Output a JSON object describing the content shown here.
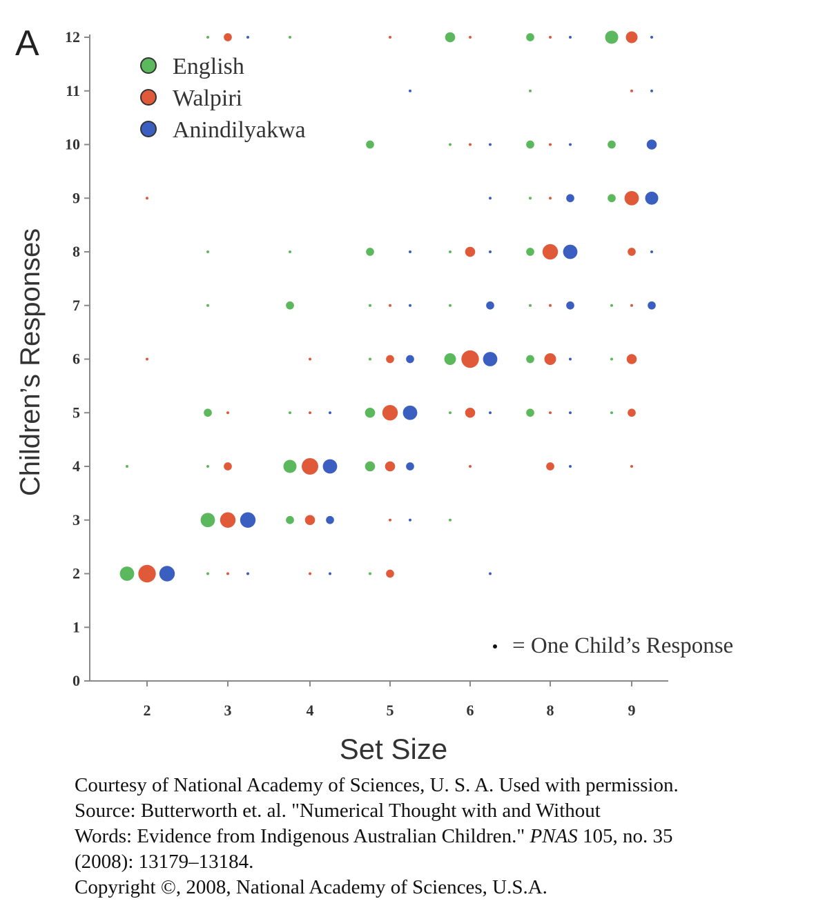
{
  "chart_data": {
    "type": "scatter",
    "panel_label": "A",
    "xlabel": "Set Size",
    "ylabel": "Children’s Responses",
    "x_categories": [
      "2",
      "3",
      "4",
      "5",
      "6",
      "8",
      "9"
    ],
    "y_ticks": [
      "0",
      "1",
      "2",
      "3",
      "4",
      "5",
      "6",
      "7",
      "8",
      "9",
      "10",
      "11",
      "12"
    ],
    "ylim": [
      0,
      12
    ],
    "legend_position": "top-left",
    "size_note": "= One Child’s Response",
    "series": [
      {
        "name": "English",
        "color": "#5cb85c",
        "points": [
          {
            "x": "2",
            "y": 2,
            "n": 6
          },
          {
            "x": "2",
            "y": 4,
            "n": 1
          },
          {
            "x": "3",
            "y": 3,
            "n": 6
          },
          {
            "x": "3",
            "y": 5,
            "n": 2
          },
          {
            "x": "3",
            "y": 7,
            "n": 1
          },
          {
            "x": "3",
            "y": 8,
            "n": 1
          },
          {
            "x": "3",
            "y": 12,
            "n": 1
          },
          {
            "x": "3",
            "y": 2,
            "n": 1
          },
          {
            "x": "3",
            "y": 4,
            "n": 1
          },
          {
            "x": "4",
            "y": 4,
            "n": 5
          },
          {
            "x": "4",
            "y": 3,
            "n": 2
          },
          {
            "x": "4",
            "y": 7,
            "n": 2
          },
          {
            "x": "4",
            "y": 5,
            "n": 1
          },
          {
            "x": "4",
            "y": 8,
            "n": 1
          },
          {
            "x": "4",
            "y": 12,
            "n": 1
          },
          {
            "x": "5",
            "y": 5,
            "n": 3
          },
          {
            "x": "5",
            "y": 4,
            "n": 3
          },
          {
            "x": "5",
            "y": 10,
            "n": 2
          },
          {
            "x": "5",
            "y": 8,
            "n": 2
          },
          {
            "x": "5",
            "y": 6,
            "n": 1
          },
          {
            "x": "5",
            "y": 7,
            "n": 1
          },
          {
            "x": "5",
            "y": 2,
            "n": 1
          },
          {
            "x": "6",
            "y": 6,
            "n": 4
          },
          {
            "x": "6",
            "y": 12,
            "n": 3
          },
          {
            "x": "6",
            "y": 5,
            "n": 1
          },
          {
            "x": "6",
            "y": 8,
            "n": 1
          },
          {
            "x": "6",
            "y": 10,
            "n": 1
          },
          {
            "x": "6",
            "y": 7,
            "n": 1
          },
          {
            "x": "6",
            "y": 3,
            "n": 1
          },
          {
            "x": "8",
            "y": 10,
            "n": 2
          },
          {
            "x": "8",
            "y": 6,
            "n": 2
          },
          {
            "x": "8",
            "y": 5,
            "n": 2
          },
          {
            "x": "8",
            "y": 12,
            "n": 2
          },
          {
            "x": "8",
            "y": 11,
            "n": 1
          },
          {
            "x": "8",
            "y": 9,
            "n": 1
          },
          {
            "x": "8",
            "y": 8,
            "n": 2
          },
          {
            "x": "8",
            "y": 7,
            "n": 1
          },
          {
            "x": "9",
            "y": 12,
            "n": 5
          },
          {
            "x": "9",
            "y": 10,
            "n": 2
          },
          {
            "x": "9",
            "y": 9,
            "n": 2
          },
          {
            "x": "9",
            "y": 7,
            "n": 1
          },
          {
            "x": "9",
            "y": 6,
            "n": 1
          },
          {
            "x": "9",
            "y": 5,
            "n": 1
          }
        ]
      },
      {
        "name": "Walpiri",
        "color": "#e05a3a",
        "points": [
          {
            "x": "2",
            "y": 2,
            "n": 9
          },
          {
            "x": "2",
            "y": 9,
            "n": 1
          },
          {
            "x": "2",
            "y": 6,
            "n": 1
          },
          {
            "x": "3",
            "y": 3,
            "n": 7
          },
          {
            "x": "3",
            "y": 4,
            "n": 2
          },
          {
            "x": "3",
            "y": 5,
            "n": 1
          },
          {
            "x": "3",
            "y": 12,
            "n": 2
          },
          {
            "x": "3",
            "y": 2,
            "n": 1
          },
          {
            "x": "4",
            "y": 4,
            "n": 8
          },
          {
            "x": "4",
            "y": 3,
            "n": 3
          },
          {
            "x": "4",
            "y": 5,
            "n": 1
          },
          {
            "x": "4",
            "y": 6,
            "n": 1
          },
          {
            "x": "4",
            "y": 2,
            "n": 1
          },
          {
            "x": "5",
            "y": 5,
            "n": 7
          },
          {
            "x": "5",
            "y": 4,
            "n": 3
          },
          {
            "x": "5",
            "y": 6,
            "n": 2
          },
          {
            "x": "5",
            "y": 3,
            "n": 1
          },
          {
            "x": "5",
            "y": 2,
            "n": 2
          },
          {
            "x": "5",
            "y": 7,
            "n": 1
          },
          {
            "x": "5",
            "y": 12,
            "n": 1
          },
          {
            "x": "6",
            "y": 6,
            "n": 9
          },
          {
            "x": "6",
            "y": 5,
            "n": 3
          },
          {
            "x": "6",
            "y": 8,
            "n": 3
          },
          {
            "x": "6",
            "y": 4,
            "n": 1
          },
          {
            "x": "6",
            "y": 10,
            "n": 1
          },
          {
            "x": "6",
            "y": 12,
            "n": 1
          },
          {
            "x": "8",
            "y": 8,
            "n": 7
          },
          {
            "x": "8",
            "y": 6,
            "n": 4
          },
          {
            "x": "8",
            "y": 4,
            "n": 2
          },
          {
            "x": "8",
            "y": 12,
            "n": 1
          },
          {
            "x": "8",
            "y": 9,
            "n": 1
          },
          {
            "x": "8",
            "y": 7,
            "n": 1
          },
          {
            "x": "8",
            "y": 10,
            "n": 1
          },
          {
            "x": "8",
            "y": 5,
            "n": 1
          },
          {
            "x": "9",
            "y": 9,
            "n": 6
          },
          {
            "x": "9",
            "y": 12,
            "n": 4
          },
          {
            "x": "9",
            "y": 6,
            "n": 3
          },
          {
            "x": "9",
            "y": 8,
            "n": 2
          },
          {
            "x": "9",
            "y": 5,
            "n": 2
          },
          {
            "x": "9",
            "y": 7,
            "n": 1
          },
          {
            "x": "9",
            "y": 4,
            "n": 1
          },
          {
            "x": "9",
            "y": 11,
            "n": 1
          }
        ]
      },
      {
        "name": "Anindilyakwa",
        "color": "#3a5fc0",
        "points": [
          {
            "x": "2",
            "y": 2,
            "n": 7
          },
          {
            "x": "3",
            "y": 3,
            "n": 7
          },
          {
            "x": "3",
            "y": 2,
            "n": 1
          },
          {
            "x": "3",
            "y": 12,
            "n": 1
          },
          {
            "x": "4",
            "y": 4,
            "n": 6
          },
          {
            "x": "4",
            "y": 3,
            "n": 2
          },
          {
            "x": "4",
            "y": 5,
            "n": 1
          },
          {
            "x": "4",
            "y": 2,
            "n": 1
          },
          {
            "x": "5",
            "y": 5,
            "n": 6
          },
          {
            "x": "5",
            "y": 6,
            "n": 2
          },
          {
            "x": "5",
            "y": 4,
            "n": 2
          },
          {
            "x": "5",
            "y": 8,
            "n": 1
          },
          {
            "x": "5",
            "y": 7,
            "n": 1
          },
          {
            "x": "5",
            "y": 3,
            "n": 1
          },
          {
            "x": "5",
            "y": 11,
            "n": 1
          },
          {
            "x": "6",
            "y": 6,
            "n": 6
          },
          {
            "x": "6",
            "y": 7,
            "n": 2
          },
          {
            "x": "6",
            "y": 8,
            "n": 1
          },
          {
            "x": "6",
            "y": 9,
            "n": 1
          },
          {
            "x": "6",
            "y": 10,
            "n": 1
          },
          {
            "x": "6",
            "y": 5,
            "n": 1
          },
          {
            "x": "6",
            "y": 2,
            "n": 1
          },
          {
            "x": "8",
            "y": 8,
            "n": 6
          },
          {
            "x": "8",
            "y": 9,
            "n": 2
          },
          {
            "x": "8",
            "y": 7,
            "n": 2
          },
          {
            "x": "8",
            "y": 12,
            "n": 1
          },
          {
            "x": "8",
            "y": 10,
            "n": 1
          },
          {
            "x": "8",
            "y": 6,
            "n": 1
          },
          {
            "x": "8",
            "y": 5,
            "n": 1
          },
          {
            "x": "8",
            "y": 4,
            "n": 1
          },
          {
            "x": "9",
            "y": 9,
            "n": 5
          },
          {
            "x": "9",
            "y": 10,
            "n": 3
          },
          {
            "x": "9",
            "y": 7,
            "n": 2
          },
          {
            "x": "9",
            "y": 12,
            "n": 1
          },
          {
            "x": "9",
            "y": 11,
            "n": 1
          },
          {
            "x": "9",
            "y": 8,
            "n": 1
          }
        ]
      }
    ]
  },
  "credit": {
    "line1": "Courtesy of National Academy of Sciences, U. S. A. Used with permission.",
    "line2": "Source: Butterworth et. al. \"Numerical Thought with and Without",
    "line3_before": "Words: Evidence from Indigenous Australian Children.\" ",
    "line3_journal": "PNAS",
    "line3_after": " 105, no. 35",
    "line4": "(2008): 13179–13184.",
    "line5": "Copyright ©, 2008, National Academy of Sciences, U.S.A."
  }
}
